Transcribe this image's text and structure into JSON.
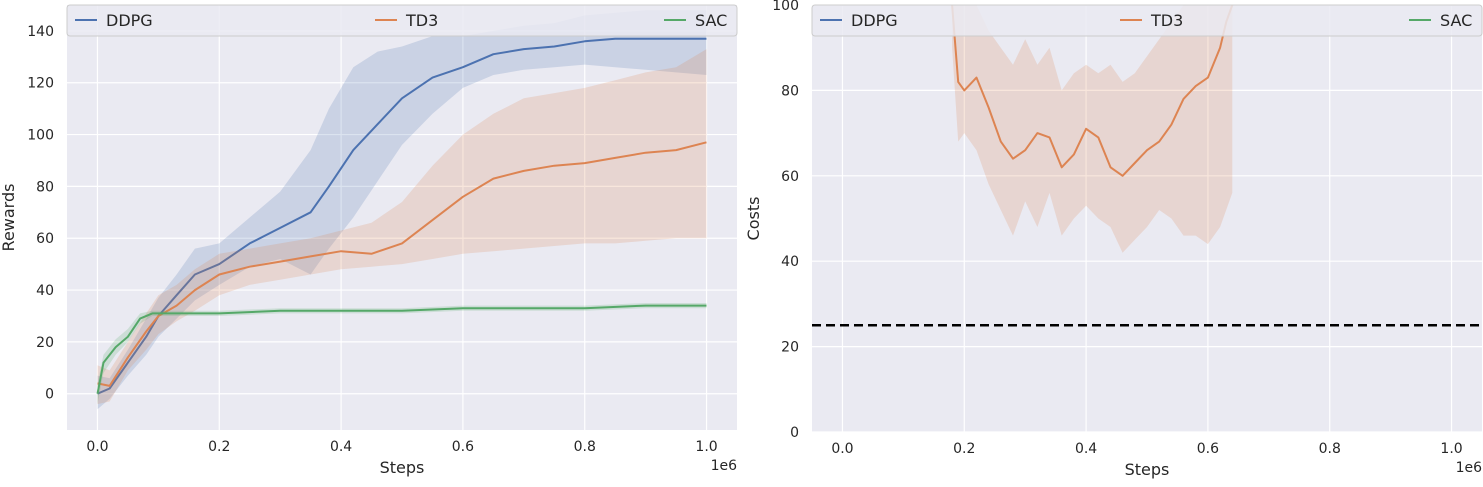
{
  "chart_data": [
    {
      "type": "line",
      "xlabel": "Steps",
      "ylabel": "Rewards",
      "x_offset_label": "1e6",
      "xlim": [
        -0.05,
        1.05
      ],
      "ylim": [
        -14,
        150
      ],
      "xticks": [
        0.0,
        0.2,
        0.4,
        0.6,
        0.8,
        1.0
      ],
      "xtick_labels": [
        "0.0",
        "0.2",
        "0.4",
        "0.6",
        "0.8",
        "1.0"
      ],
      "yticks": [
        0,
        20,
        40,
        60,
        80,
        100,
        120,
        140
      ],
      "ytick_labels": [
        "0",
        "20",
        "40",
        "60",
        "80",
        "100",
        "120",
        "140"
      ],
      "grid": true,
      "legend_position": "top",
      "series": [
        {
          "name": "DDPG",
          "color": "#4c72b0",
          "x": [
            0.0,
            0.02,
            0.05,
            0.08,
            0.1,
            0.13,
            0.16,
            0.2,
            0.25,
            0.3,
            0.35,
            0.38,
            0.42,
            0.46,
            0.5,
            0.55,
            0.6,
            0.65,
            0.7,
            0.75,
            0.8,
            0.85,
            0.9,
            0.95,
            1.0
          ],
          "y": [
            0,
            2,
            12,
            22,
            30,
            38,
            46,
            50,
            58,
            64,
            70,
            80,
            94,
            104,
            114,
            122,
            126,
            131,
            133,
            134,
            136,
            137,
            137,
            137,
            137
          ],
          "lower": [
            -6,
            -2,
            7,
            15,
            22,
            29,
            36,
            42,
            49,
            52,
            46,
            56,
            68,
            82,
            96,
            108,
            118,
            123,
            125,
            126,
            127,
            126,
            125,
            124,
            123
          ],
          "upper": [
            7,
            6,
            17,
            29,
            37,
            46,
            56,
            58,
            68,
            78,
            94,
            110,
            126,
            132,
            134,
            138,
            138,
            140,
            142,
            143,
            146,
            147,
            148,
            148,
            148
          ]
        },
        {
          "name": "TD3",
          "color": "#dd8452",
          "x": [
            0.0,
            0.02,
            0.05,
            0.08,
            0.1,
            0.13,
            0.16,
            0.2,
            0.25,
            0.3,
            0.35,
            0.4,
            0.45,
            0.5,
            0.55,
            0.6,
            0.65,
            0.7,
            0.75,
            0.8,
            0.85,
            0.9,
            0.95,
            1.0
          ],
          "y": [
            4,
            3,
            14,
            24,
            30,
            34,
            40,
            46,
            49,
            51,
            53,
            55,
            54,
            58,
            67,
            76,
            83,
            86,
            88,
            89,
            91,
            93,
            94,
            97
          ],
          "lower": [
            -4,
            -3,
            9,
            17,
            23,
            28,
            32,
            38,
            42,
            44,
            46,
            48,
            49,
            50,
            52,
            54,
            55,
            56,
            57,
            58,
            58,
            59,
            60,
            60
          ],
          "upper": [
            11,
            9,
            20,
            31,
            38,
            42,
            48,
            54,
            56,
            58,
            60,
            63,
            66,
            74,
            88,
            100,
            108,
            114,
            116,
            118,
            121,
            124,
            126,
            133
          ]
        },
        {
          "name": "SAC",
          "color": "#55a868",
          "x": [
            0.0,
            0.01,
            0.03,
            0.05,
            0.07,
            0.09,
            0.12,
            0.15,
            0.2,
            0.3,
            0.4,
            0.5,
            0.6,
            0.7,
            0.8,
            0.9,
            1.0
          ],
          "y": [
            0,
            12,
            18,
            22,
            29,
            31,
            31,
            31,
            31,
            32,
            32,
            32,
            33,
            33,
            33,
            34,
            34
          ],
          "lower": [
            -4,
            8,
            15,
            20,
            27,
            30,
            30,
            30,
            30,
            31,
            31,
            31,
            32,
            32,
            32,
            33,
            33
          ],
          "upper": [
            4,
            15,
            21,
            25,
            31,
            32,
            32,
            32,
            32,
            33,
            33,
            33,
            34,
            34,
            34,
            35,
            35
          ]
        }
      ]
    },
    {
      "type": "line",
      "xlabel": "Steps",
      "ylabel": "Costs",
      "x_offset_label": "1e6",
      "xlim": [
        -0.05,
        1.05
      ],
      "ylim": [
        0,
        100
      ],
      "xticks": [
        0.0,
        0.2,
        0.4,
        0.6,
        0.8,
        1.0
      ],
      "xtick_labels": [
        "0.0",
        "0.2",
        "0.4",
        "0.6",
        "0.8",
        "1.0"
      ],
      "yticks": [
        0,
        20,
        40,
        60,
        80,
        100
      ],
      "ytick_labels": [
        "0",
        "20",
        "40",
        "60",
        "80",
        "100"
      ],
      "grid": true,
      "legend_position": "top",
      "threshold": 25,
      "series": [
        {
          "name": "DDPG",
          "color": "#4c72b0",
          "x": [],
          "y": [],
          "lower": [],
          "upper": []
        },
        {
          "name": "TD3",
          "color": "#dd8452",
          "x": [
            0.18,
            0.19,
            0.2,
            0.22,
            0.24,
            0.26,
            0.28,
            0.3,
            0.32,
            0.34,
            0.36,
            0.38,
            0.4,
            0.42,
            0.44,
            0.46,
            0.48,
            0.5,
            0.52,
            0.54,
            0.56,
            0.58,
            0.6,
            0.62,
            0.63,
            0.64
          ],
          "y": [
            100,
            82,
            80,
            83,
            76,
            68,
            64,
            66,
            70,
            69,
            62,
            65,
            71,
            69,
            62,
            60,
            63,
            66,
            68,
            72,
            78,
            81,
            83,
            90,
            96,
            100
          ],
          "lower": [
            90,
            68,
            70,
            66,
            58,
            52,
            46,
            54,
            48,
            56,
            46,
            50,
            53,
            50,
            48,
            42,
            45,
            48,
            52,
            50,
            46,
            46,
            44,
            48,
            52,
            56
          ],
          "upper": [
            100,
            100,
            100,
            100,
            94,
            90,
            86,
            92,
            86,
            90,
            80,
            84,
            86,
            84,
            86,
            82,
            84,
            88,
            92,
            96,
            100,
            100,
            100,
            100,
            100,
            100
          ]
        },
        {
          "name": "SAC",
          "color": "#55a868",
          "x": [],
          "y": [],
          "lower": [],
          "upper": []
        }
      ]
    }
  ]
}
